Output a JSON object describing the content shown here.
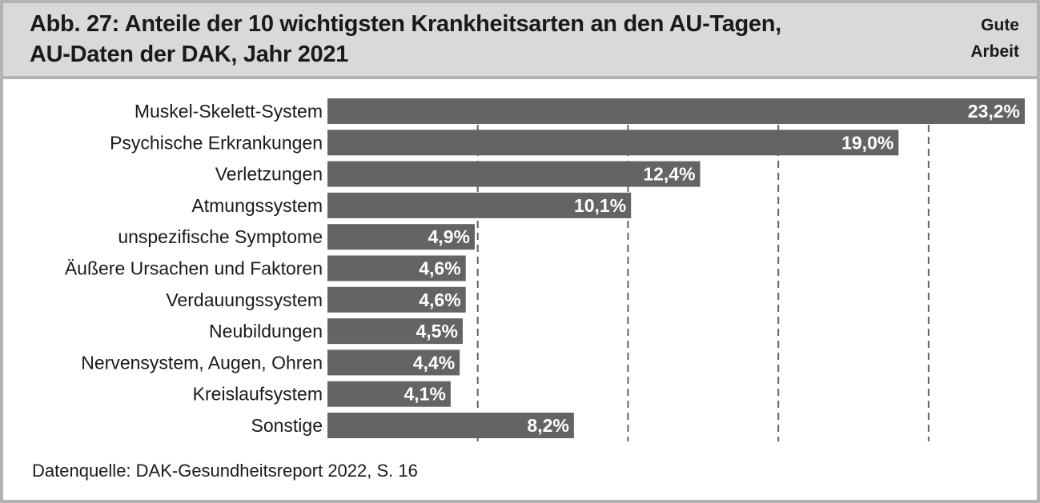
{
  "figure": {
    "title_line_1": "Abb. 27: Anteile der 10 wichtigsten Krankheitsarten an den AU-Tagen,",
    "title_line_2": "AU-Daten der DAK, Jahr 2021",
    "brand_line_1": "Gute",
    "brand_line_2": "Arbeit",
    "source": "Datenquelle: DAK-Gesundheitsreport 2022, S. 16"
  },
  "colors": {
    "header_background": "#d9d9d9",
    "frame": "#b3b3b3",
    "bar": "#646464",
    "gridline": "#646464",
    "value_label": "#ffffff"
  },
  "chart_data": {
    "type": "bar",
    "orientation": "horizontal",
    "categories": [
      "Muskel-Skelett-System",
      "Psychische Erkrankungen",
      "Verletzungen",
      "Atmungssystem",
      "unspezifische Symptome",
      "Äußere Ursachen und Faktoren",
      "Verdauungssystem",
      "Neubildungen",
      "Nervensystem, Augen, Ohren",
      "Kreislaufsystem",
      "Sonstige"
    ],
    "values": [
      23.2,
      19.0,
      12.4,
      10.1,
      4.9,
      4.6,
      4.6,
      4.5,
      4.4,
      4.1,
      8.2
    ],
    "value_labels": [
      "23,2%",
      "19,0%",
      "12,4%",
      "10,1%",
      "4,9%",
      "4,6%",
      "4,6%",
      "4,5%",
      "4,4%",
      "4,1%",
      "8,2%"
    ],
    "unit": "%",
    "xlim": [
      0,
      23.2
    ],
    "gridlines_at": [
      5,
      10,
      15,
      20
    ],
    "grid": "vertical dashed",
    "legend": "none"
  }
}
